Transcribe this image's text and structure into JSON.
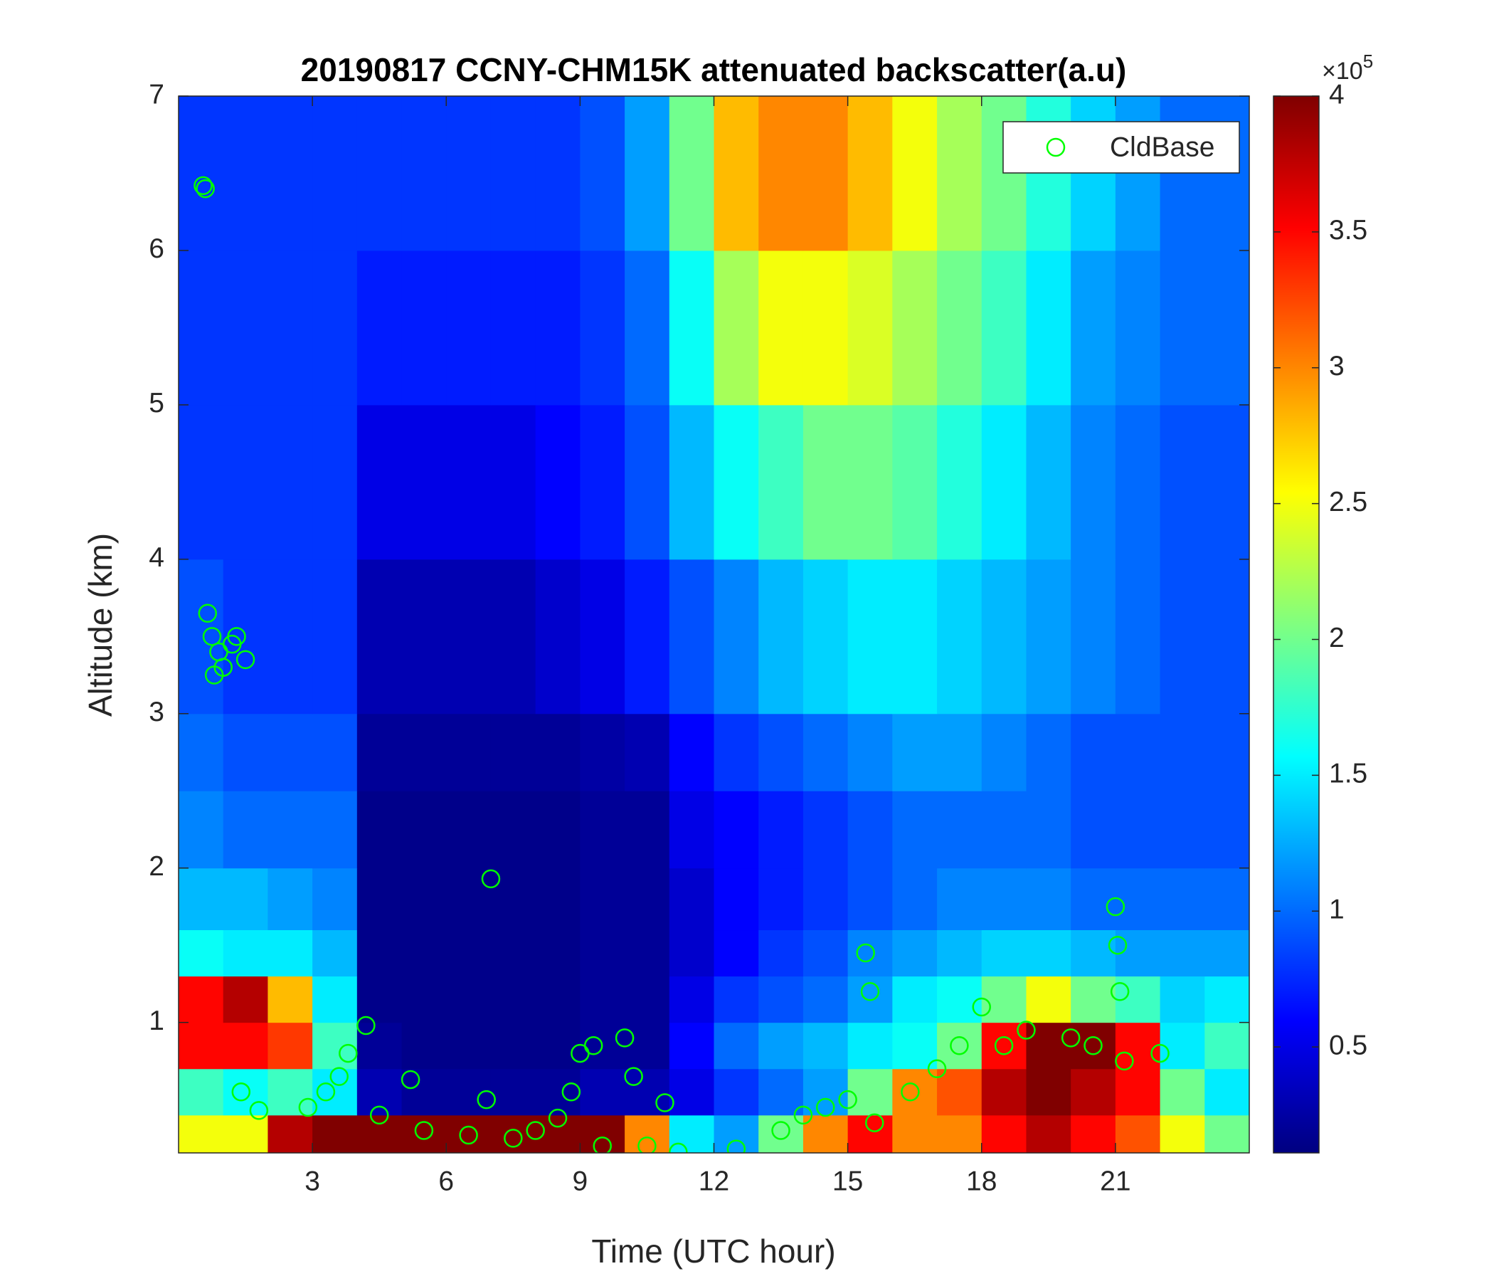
{
  "chart_data": {
    "type": "heatmap",
    "title": "20190817 CCNY-CHM15K attenuated backscatter(a.u)",
    "xlabel": "Time (UTC hour)",
    "ylabel": "Altitude (km)",
    "xlim": [
      0,
      24
    ],
    "ylim": [
      0.155,
      7
    ],
    "xticks": [
      3,
      6,
      9,
      12,
      15,
      18,
      21
    ],
    "yticks": [
      1,
      2,
      3,
      4,
      5,
      6,
      7
    ],
    "x_edges": [
      0,
      1,
      2,
      3,
      4,
      5,
      6,
      7,
      8,
      9,
      10,
      11,
      12,
      13,
      14,
      15,
      16,
      17,
      18,
      19,
      20,
      21,
      22,
      23,
      24
    ],
    "y_edges": [
      0.155,
      0.4,
      0.7,
      1.0,
      1.3,
      1.6,
      2,
      2.5,
      3,
      4,
      5,
      6,
      7
    ],
    "values": [
      [
        2.5,
        2.5,
        3.8,
        4,
        4,
        4,
        4,
        4,
        4,
        4,
        3,
        1.5,
        1.2,
        2,
        3,
        3.5,
        3,
        3,
        3.5,
        3.8,
        3.5,
        3.2,
        2.5,
        2
      ],
      [
        1.8,
        1.6,
        1.8,
        1.5,
        0.3,
        0.2,
        0.2,
        0.2,
        0.2,
        0.3,
        0.3,
        0.5,
        0.8,
        1,
        1.2,
        2,
        3,
        3.2,
        3.8,
        4,
        3.8,
        3.5,
        2,
        1.5
      ],
      [
        3.5,
        3.5,
        3.3,
        1.8,
        0.2,
        0.15,
        0.15,
        0.15,
        0.15,
        0.2,
        0.2,
        0.6,
        1,
        1.2,
        1.3,
        1.5,
        1.6,
        2,
        3.5,
        4,
        4,
        3.5,
        1.5,
        1.8
      ],
      [
        3.5,
        3.8,
        2.8,
        1.5,
        0.15,
        0.15,
        0.15,
        0.15,
        0.15,
        0.2,
        0.2,
        0.5,
        0.8,
        0.9,
        1,
        1.2,
        1.5,
        1.6,
        2,
        2.5,
        2,
        1.8,
        1.4,
        1.5
      ],
      [
        1.6,
        1.5,
        1.5,
        1.3,
        0.15,
        0.15,
        0.15,
        0.15,
        0.15,
        0.2,
        0.2,
        0.4,
        0.6,
        0.8,
        0.9,
        1.1,
        1.2,
        1.3,
        1.4,
        1.4,
        1.3,
        1.2,
        1.2,
        1.2
      ],
      [
        1.3,
        1.3,
        1.2,
        1.1,
        0.15,
        0.15,
        0.15,
        0.15,
        0.15,
        0.2,
        0.2,
        0.4,
        0.6,
        0.7,
        0.8,
        0.9,
        1,
        1.1,
        1.1,
        1.1,
        1,
        1,
        1,
        1
      ],
      [
        1.1,
        1,
        1,
        1,
        0.15,
        0.15,
        0.15,
        0.15,
        0.15,
        0.2,
        0.2,
        0.5,
        0.6,
        0.7,
        0.8,
        0.9,
        1,
        1,
        1,
        1,
        0.9,
        0.9,
        0.9,
        0.9
      ],
      [
        1,
        0.9,
        0.9,
        0.9,
        0.2,
        0.2,
        0.2,
        0.2,
        0.2,
        0.25,
        0.3,
        0.6,
        0.8,
        0.9,
        1,
        1.1,
        1.2,
        1.2,
        1.1,
        1,
        0.9,
        0.9,
        0.9,
        0.9
      ],
      [
        0.9,
        0.8,
        0.8,
        0.8,
        0.3,
        0.3,
        0.3,
        0.3,
        0.4,
        0.5,
        0.7,
        0.9,
        1.1,
        1.3,
        1.4,
        1.5,
        1.5,
        1.4,
        1.3,
        1.2,
        1.1,
        1,
        0.9,
        0.9
      ],
      [
        0.8,
        0.8,
        0.8,
        0.8,
        0.5,
        0.5,
        0.5,
        0.5,
        0.6,
        0.7,
        0.9,
        1.3,
        1.6,
        1.8,
        2,
        2,
        1.9,
        1.7,
        1.5,
        1.3,
        1.1,
        1,
        0.9,
        0.9
      ],
      [
        0.8,
        0.8,
        0.8,
        0.8,
        0.7,
        0.7,
        0.7,
        0.7,
        0.7,
        0.8,
        1,
        1.6,
        2.2,
        2.5,
        2.5,
        2.4,
        2.2,
        2,
        1.8,
        1.5,
        1.2,
        1.1,
        1,
        1
      ],
      [
        0.8,
        0.8,
        0.8,
        0.8,
        0.8,
        0.8,
        0.8,
        0.8,
        0.8,
        0.9,
        1.2,
        2,
        2.8,
        3,
        3,
        2.8,
        2.5,
        2.2,
        2,
        1.7,
        1.4,
        1.2,
        1,
        1
      ]
    ],
    "colormap": "jet",
    "clim": [
      0.11,
      4
    ],
    "cticks": [
      0.5,
      1,
      1.5,
      2,
      2.5,
      3,
      3.5,
      4
    ],
    "colorbar_exponent": {
      "base": "×10",
      "power": "5"
    },
    "series": [
      {
        "name": "CldBase",
        "color": "#00ff00",
        "marker": "open-circle",
        "x": [
          0.55,
          0.6,
          0.65,
          0.75,
          0.9,
          1.0,
          1.2,
          1.3,
          1.5,
          0.8,
          1.4,
          1.8,
          2.9,
          3.3,
          3.6,
          3.8,
          4.2,
          4.5,
          5.2,
          5.5,
          6.5,
          7.0,
          6.9,
          7.5,
          8.0,
          8.5,
          8.8,
          9.0,
          9.3,
          9.5,
          10.0,
          10.2,
          10.5,
          10.9,
          11.2,
          12.5,
          13.5,
          14.0,
          14.5,
          15.0,
          15.4,
          15.5,
          15.6,
          16.4,
          17,
          17.5,
          18,
          18.5,
          19,
          20,
          20.5,
          21,
          21.05,
          21.1,
          21.2,
          22
        ],
        "y": [
          6.42,
          6.4,
          3.65,
          3.5,
          3.4,
          3.3,
          3.45,
          3.5,
          3.35,
          3.25,
          0.55,
          0.43,
          0.45,
          0.55,
          0.65,
          0.8,
          0.98,
          0.4,
          0.63,
          0.3,
          0.27,
          1.93,
          0.5,
          0.25,
          0.3,
          0.38,
          0.55,
          0.8,
          0.85,
          0.2,
          0.9,
          0.65,
          0.2,
          0.48,
          0.16,
          0.18,
          0.3,
          0.4,
          0.45,
          0.5,
          1.45,
          1.2,
          0.35,
          0.55,
          0.7,
          0.85,
          1.1,
          0.85,
          0.95,
          0.9,
          0.85,
          1.75,
          1.5,
          1.2,
          0.75,
          0.8
        ]
      }
    ],
    "legend": "upper right"
  }
}
